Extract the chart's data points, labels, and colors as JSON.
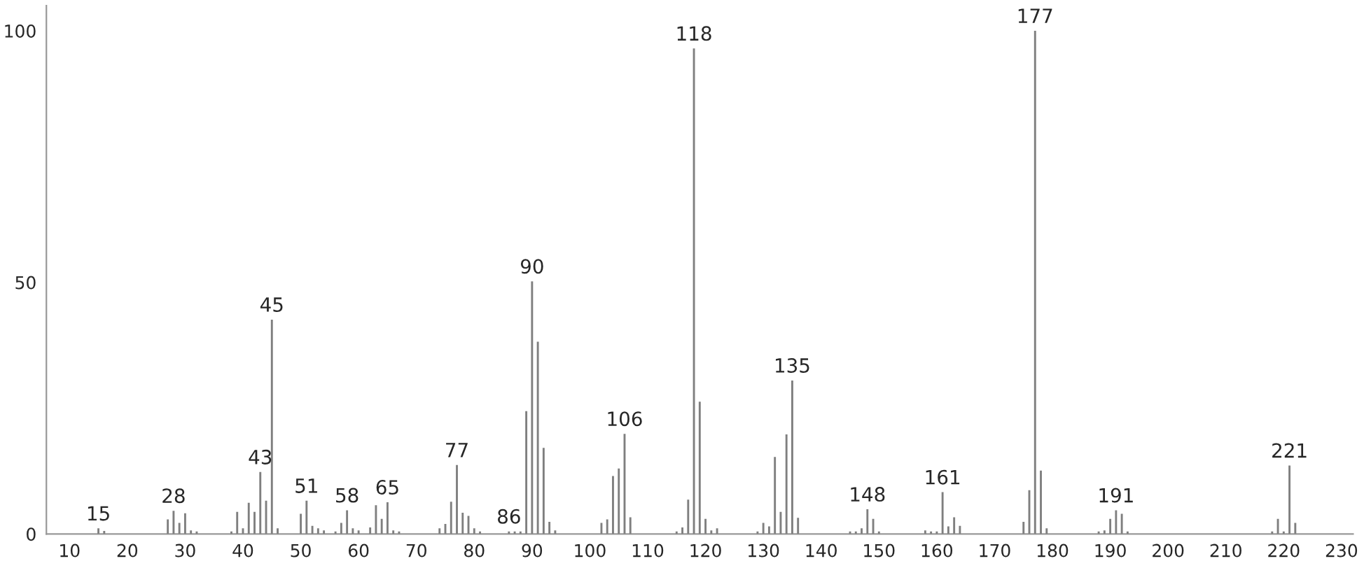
{
  "chart_data": {
    "type": "bar",
    "color": "#7f7f7f",
    "x": [
      15,
      16,
      27,
      28,
      29,
      30,
      31,
      32,
      38,
      39,
      40,
      41,
      42,
      43,
      44,
      45,
      46,
      50,
      51,
      52,
      53,
      54,
      56,
      57,
      58,
      59,
      60,
      62,
      63,
      64,
      65,
      66,
      67,
      74,
      75,
      76,
      77,
      78,
      79,
      80,
      81,
      86,
      87,
      88,
      89,
      90,
      91,
      92,
      93,
      94,
      102,
      103,
      104,
      105,
      106,
      107,
      115,
      116,
      117,
      118,
      119,
      120,
      121,
      122,
      129,
      130,
      131,
      132,
      133,
      134,
      135,
      136,
      145,
      146,
      147,
      148,
      149,
      150,
      158,
      159,
      160,
      161,
      162,
      163,
      164,
      175,
      176,
      177,
      178,
      179,
      188,
      189,
      190,
      191,
      192,
      193,
      218,
      219,
      220,
      221,
      222
    ],
    "values": [
      1.1,
      0.6,
      2.9,
      4.6,
      2.2,
      4.1,
      0.7,
      0.5,
      0.5,
      4.4,
      1.1,
      6.2,
      4.4,
      12.3,
      6.6,
      42.6,
      1.1,
      4.0,
      6.6,
      1.6,
      1.1,
      0.7,
      0.5,
      2.2,
      4.7,
      1.1,
      0.7,
      1.3,
      5.7,
      3.0,
      6.3,
      0.7,
      0.5,
      1.1,
      2.0,
      6.4,
      13.7,
      4.2,
      3.6,
      1.1,
      0.5,
      0.5,
      0.5,
      0.5,
      24.4,
      50.2,
      38.2,
      17.1,
      2.4,
      0.7,
      2.2,
      2.9,
      11.5,
      13.0,
      19.9,
      3.3,
      0.5,
      1.3,
      6.8,
      96.5,
      26.3,
      3.0,
      0.7,
      1.1,
      0.5,
      2.2,
      1.5,
      15.3,
      4.4,
      19.8,
      30.5,
      3.2,
      0.5,
      0.5,
      1.1,
      4.9,
      3.0,
      0.5,
      0.7,
      0.5,
      0.5,
      8.3,
      1.5,
      3.3,
      1.6,
      2.4,
      8.7,
      100,
      12.6,
      1.1,
      0.5,
      0.7,
      3.0,
      4.7,
      4.0,
      0.5,
      0.5,
      3.0,
      0.5,
      13.6,
      2.2
    ],
    "annotations": [
      {
        "text": "15",
        "x": 15,
        "y": 1.1
      },
      {
        "text": "28",
        "x": 28,
        "y": 4.6
      },
      {
        "text": "43",
        "x": 43,
        "y": 12.3
      },
      {
        "text": "45",
        "x": 45,
        "y": 42.6
      },
      {
        "text": "51",
        "x": 51,
        "y": 6.6
      },
      {
        "text": "58",
        "x": 58,
        "y": 4.7
      },
      {
        "text": "65",
        "x": 65,
        "y": 6.3
      },
      {
        "text": "77",
        "x": 77,
        "y": 13.7
      },
      {
        "text": "86",
        "x": 86,
        "y": 0.5
      },
      {
        "text": "90",
        "x": 90,
        "y": 50.2
      },
      {
        "text": "106",
        "x": 106,
        "y": 19.9
      },
      {
        "text": "118",
        "x": 118,
        "y": 96.5
      },
      {
        "text": "135",
        "x": 135,
        "y": 30.5
      },
      {
        "text": "148",
        "x": 148,
        "y": 4.9
      },
      {
        "text": "161",
        "x": 161,
        "y": 8.3
      },
      {
        "text": "177",
        "x": 177,
        "y": 100
      },
      {
        "text": "191",
        "x": 191,
        "y": 4.7
      },
      {
        "text": "221",
        "x": 221,
        "y": 13.6
      }
    ],
    "xlim": [
      6,
      232
    ],
    "xticks": [
      10,
      20,
      30,
      40,
      50,
      60,
      70,
      80,
      90,
      100,
      110,
      120,
      130,
      140,
      150,
      160,
      170,
      180,
      190,
      200,
      210,
      220,
      230
    ],
    "ylim": [
      0,
      105
    ],
    "yticks": [
      0,
      50,
      100
    ],
    "grid": false,
    "legend": false
  }
}
